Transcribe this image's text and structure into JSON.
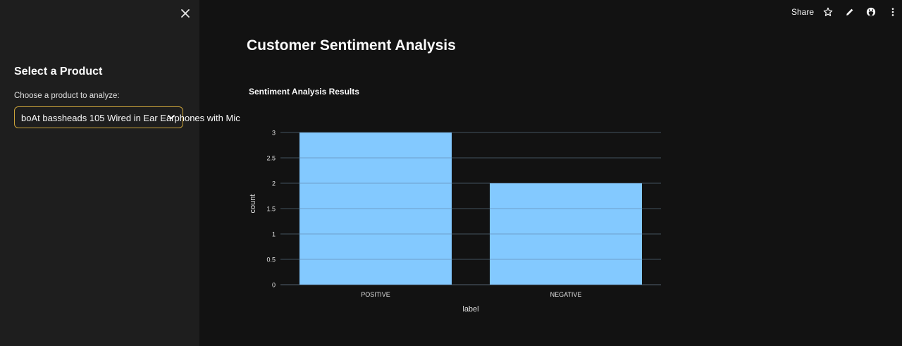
{
  "sidebar": {
    "heading": "Select a Product",
    "select_label": "Choose a product to analyze:",
    "selected_value": "boAt bassheads 105 Wired in Ear Earphones with Mic"
  },
  "topbar": {
    "share_label": "Share"
  },
  "main": {
    "title": "Customer Sentiment Analysis"
  },
  "colors": {
    "bar": "#83c9ff",
    "accent_border": "#c9a23a"
  },
  "chart_data": {
    "type": "bar",
    "title": "Sentiment Analysis Results",
    "categories": [
      "POSITIVE",
      "NEGATIVE"
    ],
    "values": [
      3,
      2
    ],
    "xlabel": "label",
    "ylabel": "count",
    "ylim": [
      0,
      3
    ],
    "yticks": [
      0,
      0.5,
      1,
      1.5,
      2,
      2.5,
      3
    ],
    "grid": true
  }
}
